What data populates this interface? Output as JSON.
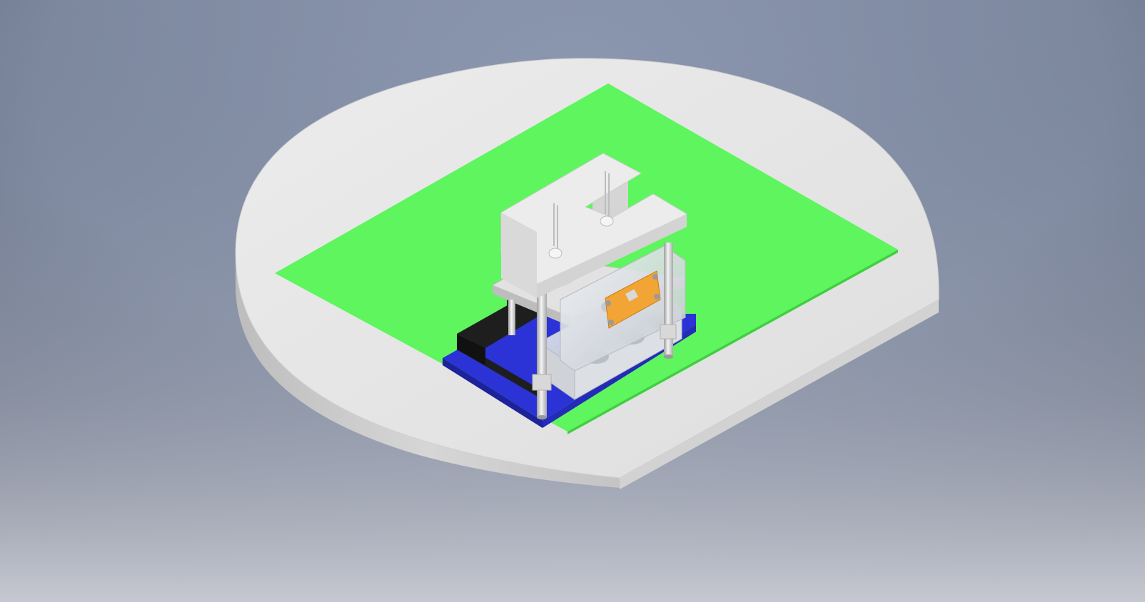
{
  "scene": {
    "background_top": "#7c8aa3",
    "background_bottom": "#c9ccd6",
    "platform_top": "#e4e4e4",
    "platform_side": "#cfcfcf",
    "mat_color": "#5ef55e",
    "board_color": "#2b33d6",
    "header_color": "#1e1e1e",
    "frame_color": "#e8e8e8",
    "acrylic_color": "#d9dde2",
    "sensor_color": "#f2a535",
    "fan_color": "#3a3a3a",
    "components": [
      "round-platform",
      "green-mat",
      "blue-microcontroller-board",
      "black-pin-headers",
      "acrylic-frame-stack",
      "white-top-bracket",
      "fan-module",
      "orange-sensor-board",
      "standoff-pillars",
      "led-leads"
    ]
  }
}
